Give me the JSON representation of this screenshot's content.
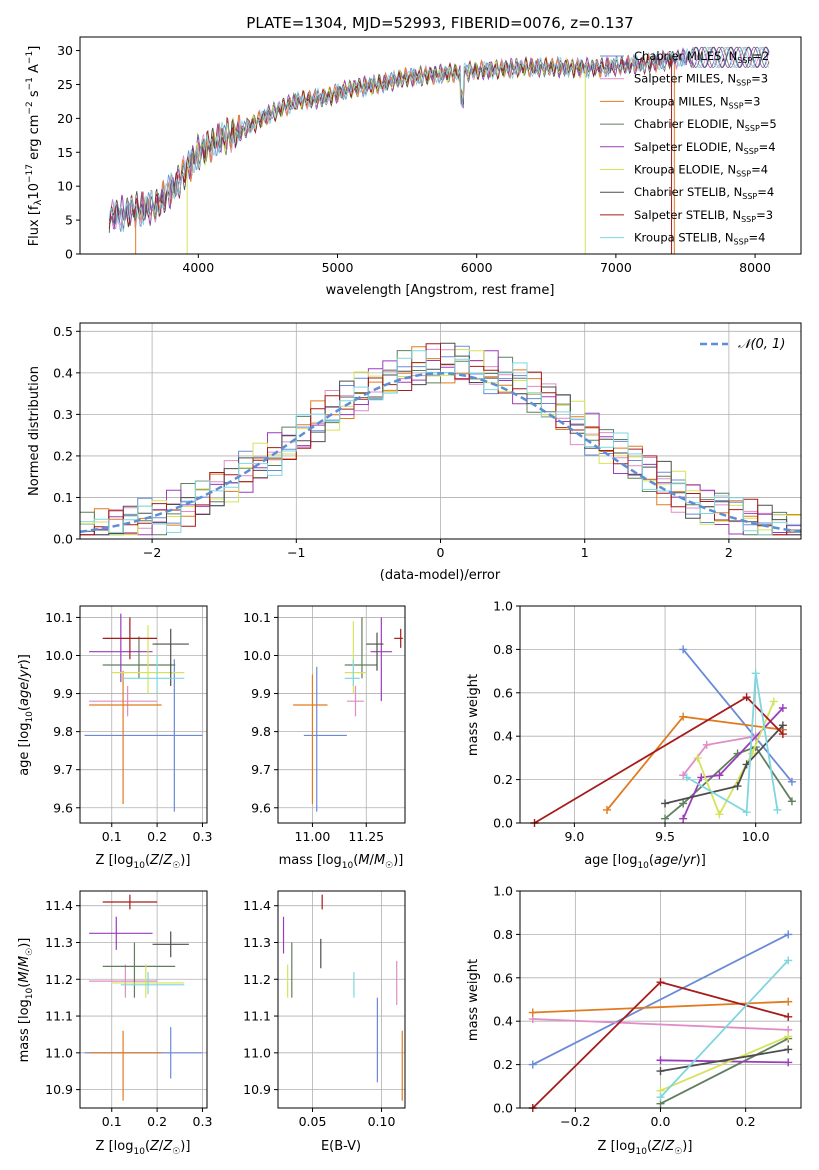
{
  "figure_title": "PLATE=1304, MJD=52993, FIBERID=0076, z=0.137",
  "colors": {
    "chabrier_miles": "#6a8ad8",
    "salpeter_miles": "#e08cc6",
    "kroupa_miles": "#e07b20",
    "chabrier_elodie": "#5f7f5f",
    "salpeter_elodie": "#9a3dbb",
    "kroupa_elodie": "#d6e35a",
    "chabrier_stelib": "#4d4d4d",
    "salpeter_stelib": "#a61c1c",
    "kroupa_stelib": "#7fd6e0",
    "normal": "#5b8ed6"
  },
  "chart_data": [
    {
      "type": "line",
      "title": "PLATE=1304, MJD=52993, FIBERID=0076, z=0.137",
      "xlabel": "wavelength [Angstrom, rest frame]",
      "ylabel": "Flux [fλ10⁻¹⁷ erg cm⁻² s⁻¹ A⁻¹]",
      "xlim": [
        3150,
        8330
      ],
      "ylim": [
        0,
        32
      ],
      "xticks": [
        "4000",
        "5000",
        "6000",
        "7000",
        "8000"
      ],
      "yticks": [
        "0",
        "5",
        "10",
        "15",
        "20",
        "25",
        "30"
      ],
      "grid": false,
      "legend_position": "right",
      "continuum_approx": {
        "x": [
          3350,
          3550,
          3700,
          3850,
          4000,
          4150,
          4300,
          4500,
          4700,
          4900,
          5100,
          5300,
          5500,
          5700,
          6000,
          6300,
          6600,
          6900,
          7200,
          7500
        ],
        "y": [
          5.5,
          6.5,
          7,
          10.5,
          15,
          17,
          18,
          20.5,
          22.5,
          23,
          24.5,
          25,
          26,
          26.5,
          27,
          27.5,
          27.5,
          27.5,
          28,
          29
        ]
      },
      "series": [
        {
          "name": "Chabrier MILES, N_SSP=2"
        },
        {
          "name": "Salpeter MILES, N_SSP=3"
        },
        {
          "name": "Kroupa MILES, N_SSP=3"
        },
        {
          "name": "Chabrier ELODIE, N_SSP=5"
        },
        {
          "name": "Salpeter ELODIE, N_SSP=4"
        },
        {
          "name": "Kroupa ELODIE, N_SSP=4"
        },
        {
          "name": "Chabrier STELIB, N_SSP=4"
        },
        {
          "name": "Salpeter STELIB, N_SSP=3"
        },
        {
          "name": "Kroupa STELIB, N_SSP=4"
        }
      ]
    },
    {
      "type": "line",
      "subtype": "step-histogram",
      "xlabel": "(data-model)/error",
      "ylabel": "Normed distribution",
      "xlim": [
        -2.5,
        2.5
      ],
      "ylim": [
        0,
        0.52
      ],
      "xticks": [
        "−2",
        "−1",
        "0",
        "1",
        "2"
      ],
      "yticks": [
        "0.0",
        "0.1",
        "0.2",
        "0.3",
        "0.4",
        "0.5"
      ],
      "grid": true,
      "legend_position": "top-right",
      "legend": [
        "𝒩(0, 1)"
      ],
      "bin_width": 0.1,
      "note_normal": "standard normal density overlay"
    },
    {
      "type": "scatter",
      "subtype": "errorbar",
      "xlabel": "Z [log10(Z/Z☉)]",
      "ylabel": "age  [log10(age/yr)]",
      "xlim": [
        0.03,
        0.31
      ],
      "ylim": [
        9.56,
        10.13
      ],
      "xticks": [
        "0.1",
        "0.2",
        "0.3"
      ],
      "yticks": [
        "9.6",
        "9.7",
        "9.8",
        "9.9",
        "10.0",
        "10.1"
      ],
      "grid": true,
      "points": [
        {
          "x": 0.238,
          "y": 9.79,
          "xlo": 0.04,
          "xhi": 0.3,
          "ylo": 9.59,
          "yhi": 9.99
        },
        {
          "x": 0.135,
          "y": 9.88,
          "xlo": 0.05,
          "xhi": 0.2,
          "ylo": 9.84,
          "yhi": 9.92
        },
        {
          "x": 0.125,
          "y": 9.87,
          "xlo": 0.05,
          "xhi": 0.21,
          "ylo": 9.61,
          "yhi": 9.96
        },
        {
          "x": 0.16,
          "y": 9.975,
          "xlo": 0.08,
          "xhi": 0.24,
          "ylo": 9.94,
          "yhi": 10.05
        },
        {
          "x": 0.12,
          "y": 10.01,
          "xlo": 0.05,
          "xhi": 0.19,
          "ylo": 9.93,
          "yhi": 10.11
        },
        {
          "x": 0.18,
          "y": 9.955,
          "xlo": 0.1,
          "xhi": 0.26,
          "ylo": 9.9,
          "yhi": 10.08
        },
        {
          "x": 0.23,
          "y": 10.03,
          "xlo": 0.19,
          "xhi": 0.27,
          "ylo": 9.92,
          "yhi": 10.07
        },
        {
          "x": 0.14,
          "y": 10.045,
          "xlo": 0.08,
          "xhi": 0.2,
          "ylo": 9.99,
          "yhi": 10.1
        },
        {
          "x": 0.2,
          "y": 9.94,
          "xlo": 0.12,
          "xhi": 0.26,
          "ylo": 9.9,
          "yhi": 10.0
        }
      ]
    },
    {
      "type": "scatter",
      "subtype": "errorbar",
      "xlabel": "mass [log10(M/M☉)]",
      "ylabel": "",
      "xlim": [
        10.84,
        11.43
      ],
      "ylim": [
        9.56,
        10.13
      ],
      "xticks": [
        "11.00",
        "11.25"
      ],
      "yticks": [
        "9.6",
        "9.7",
        "9.8",
        "9.9",
        "10.0",
        "10.1"
      ],
      "grid": true,
      "points": [
        {
          "x": 11.02,
          "y": 9.79,
          "xlo": 10.96,
          "xhi": 11.16,
          "ylo": 9.59,
          "yhi": 9.97
        },
        {
          "x": 11.2,
          "y": 9.88,
          "xlo": 11.16,
          "xhi": 11.24,
          "ylo": 9.84,
          "yhi": 9.92
        },
        {
          "x": 11.0,
          "y": 9.87,
          "xlo": 10.91,
          "xhi": 11.07,
          "ylo": 9.61,
          "yhi": 9.95
        },
        {
          "x": 11.23,
          "y": 9.975,
          "xlo": 11.15,
          "xhi": 11.3,
          "ylo": 9.94,
          "yhi": 10.1
        },
        {
          "x": 11.32,
          "y": 10.01,
          "xlo": 11.27,
          "xhi": 11.37,
          "ylo": 9.88,
          "yhi": 10.1
        },
        {
          "x": 11.19,
          "y": 9.955,
          "xlo": 11.15,
          "xhi": 11.25,
          "ylo": 9.9,
          "yhi": 10.09
        },
        {
          "x": 11.3,
          "y": 10.03,
          "xlo": 11.25,
          "xhi": 11.33,
          "ylo": 9.96,
          "yhi": 10.06
        },
        {
          "x": 11.41,
          "y": 10.045,
          "xlo": 11.38,
          "xhi": 11.42,
          "ylo": 10.02,
          "yhi": 10.07
        },
        {
          "x": 11.19,
          "y": 9.94,
          "xlo": 11.15,
          "xhi": 11.22,
          "ylo": 9.92,
          "yhi": 9.99
        }
      ]
    },
    {
      "type": "line",
      "xlabel": "age  [log10(age/yr)]",
      "ylabel": "mass weight",
      "xlim": [
        8.7,
        10.25
      ],
      "ylim": [
        0,
        1.0
      ],
      "xticks": [
        "9.0",
        "9.5",
        "10.0"
      ],
      "yticks": [
        "0.0",
        "0.2",
        "0.4",
        "0.6",
        "0.8",
        "1.0"
      ],
      "grid": true,
      "series": [
        {
          "x": [
            9.6,
            10.2
          ],
          "y": [
            0.8,
            0.19
          ]
        },
        {
          "x": [
            9.6,
            9.73,
            10.0
          ],
          "y": [
            0.22,
            0.36,
            0.4
          ]
        },
        {
          "x": [
            9.18,
            9.6,
            10.15
          ],
          "y": [
            0.06,
            0.49,
            0.43
          ]
        },
        {
          "x": [
            9.5,
            9.6,
            9.9,
            10.0,
            10.2
          ],
          "y": [
            0.02,
            0.09,
            0.32,
            0.35,
            0.1
          ]
        },
        {
          "x": [
            9.6,
            9.7,
            9.8,
            10.15
          ],
          "y": [
            0.02,
            0.21,
            0.22,
            0.53
          ]
        },
        {
          "x": [
            9.68,
            9.8,
            9.98,
            10.1
          ],
          "y": [
            0.3,
            0.04,
            0.32,
            0.56
          ]
        },
        {
          "x": [
            9.5,
            9.9,
            9.95,
            10.15
          ],
          "y": [
            0.09,
            0.17,
            0.27,
            0.45
          ]
        },
        {
          "x": [
            8.78,
            9.95,
            10.15
          ],
          "y": [
            0.0,
            0.58,
            0.41
          ]
        },
        {
          "x": [
            9.62,
            9.95,
            10.0,
            10.12
          ],
          "y": [
            0.21,
            0.05,
            0.69,
            0.06
          ]
        }
      ]
    },
    {
      "type": "scatter",
      "subtype": "errorbar",
      "xlabel": "Z [log10(Z/Z☉)]",
      "ylabel": "mass [log10(M/M☉)]",
      "xlim": [
        0.03,
        0.31
      ],
      "ylim": [
        10.85,
        11.44
      ],
      "xticks": [
        "0.1",
        "0.2",
        "0.3"
      ],
      "yticks": [
        "10.9",
        "11.0",
        "11.1",
        "11.2",
        "11.3",
        "11.4"
      ],
      "grid": true,
      "points": [
        {
          "x": 0.23,
          "y": 11.0,
          "xlo": 0.04,
          "xhi": 0.3,
          "ylo": 10.93,
          "yhi": 11.07
        },
        {
          "x": 0.13,
          "y": 11.195,
          "xlo": 0.05,
          "xhi": 0.2,
          "ylo": 11.15,
          "yhi": 11.24
        },
        {
          "x": 0.125,
          "y": 11.0,
          "xlo": 0.05,
          "xhi": 0.21,
          "ylo": 10.87,
          "yhi": 11.06
        },
        {
          "x": 0.15,
          "y": 11.235,
          "xlo": 0.08,
          "xhi": 0.24,
          "ylo": 11.15,
          "yhi": 11.3
        },
        {
          "x": 0.11,
          "y": 11.325,
          "xlo": 0.05,
          "xhi": 0.19,
          "ylo": 11.28,
          "yhi": 11.37
        },
        {
          "x": 0.175,
          "y": 11.19,
          "xlo": 0.1,
          "xhi": 0.26,
          "ylo": 11.15,
          "yhi": 11.24
        },
        {
          "x": 0.23,
          "y": 11.295,
          "xlo": 0.19,
          "xhi": 0.27,
          "ylo": 11.26,
          "yhi": 11.33
        },
        {
          "x": 0.14,
          "y": 11.41,
          "xlo": 0.08,
          "xhi": 0.2,
          "ylo": 11.39,
          "yhi": 11.43
        },
        {
          "x": 0.18,
          "y": 11.185,
          "xlo": 0.12,
          "xhi": 0.26,
          "ylo": 11.16,
          "yhi": 11.22
        }
      ]
    },
    {
      "type": "scatter",
      "subtype": "errorbar",
      "xlabel": "E(B-V)",
      "ylabel": "",
      "xlim": [
        0.025,
        0.117
      ],
      "ylim": [
        10.85,
        11.44
      ],
      "xticks": [
        "0.05",
        "0.10"
      ],
      "yticks": [
        "10.9",
        "11.0",
        "11.1",
        "11.2",
        "11.3",
        "11.4"
      ],
      "grid": true,
      "points": [
        {
          "x": 0.097,
          "y": 11.04,
          "ylo": 10.92,
          "yhi": 11.15
        },
        {
          "x": 0.111,
          "y": 11.19,
          "ylo": 11.13,
          "yhi": 11.25
        },
        {
          "x": 0.115,
          "y": 10.96,
          "ylo": 10.87,
          "yhi": 11.06
        },
        {
          "x": 0.035,
          "y": 11.235,
          "ylo": 11.15,
          "yhi": 11.3
        },
        {
          "x": 0.029,
          "y": 11.32,
          "ylo": 11.27,
          "yhi": 11.37
        },
        {
          "x": 0.032,
          "y": 11.195,
          "ylo": 11.15,
          "yhi": 11.24
        },
        {
          "x": 0.056,
          "y": 11.27,
          "ylo": 11.23,
          "yhi": 11.31
        },
        {
          "x": 0.057,
          "y": 11.41,
          "ylo": 11.39,
          "yhi": 11.43
        },
        {
          "x": 0.08,
          "y": 11.19,
          "ylo": 11.15,
          "yhi": 11.22
        }
      ]
    },
    {
      "type": "line",
      "xlabel": "Z [log10(Z/Z☉)]",
      "ylabel": "mass weight",
      "xlim": [
        -0.33,
        0.33
      ],
      "ylim": [
        0,
        1.0
      ],
      "xticks": [
        "−0.2",
        "0.0",
        "0.2"
      ],
      "yticks": [
        "0.0",
        "0.2",
        "0.4",
        "0.6",
        "0.8",
        "1.0"
      ],
      "grid": true,
      "series": [
        {
          "x": [
            -0.3,
            0.3
          ],
          "y": [
            0.2,
            0.8
          ]
        },
        {
          "x": [
            -0.3,
            0.3
          ],
          "y": [
            0.41,
            0.36
          ]
        },
        {
          "x": [
            -0.3,
            0.3
          ],
          "y": [
            0.44,
            0.49
          ]
        },
        {
          "x": [
            0.0,
            0.3
          ],
          "y": [
            0.02,
            0.32
          ]
        },
        {
          "x": [
            0.0,
            0.3
          ],
          "y": [
            0.22,
            0.21
          ]
        },
        {
          "x": [
            0.0,
            0.3
          ],
          "y": [
            0.08,
            0.33
          ]
        },
        {
          "x": [
            0.0,
            0.3
          ],
          "y": [
            0.17,
            0.27
          ]
        },
        {
          "x": [
            -0.3,
            0.0,
            0.3
          ],
          "y": [
            0.0,
            0.58,
            0.42
          ]
        },
        {
          "x": [
            0.0,
            0.3
          ],
          "y": [
            0.05,
            0.68
          ]
        }
      ]
    }
  ]
}
